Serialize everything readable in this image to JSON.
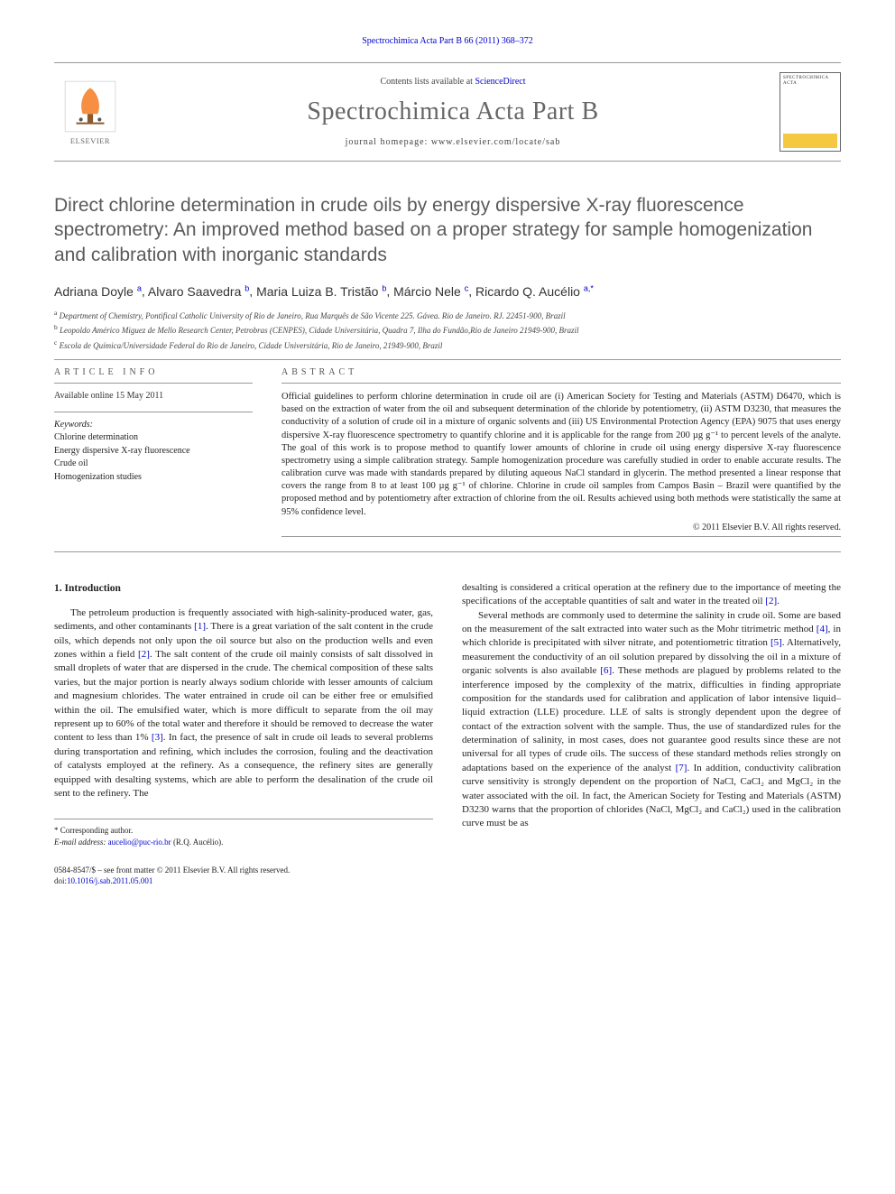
{
  "header": {
    "journal_ref_line": "Spectrochimica Acta Part B 66 (2011) 368–372",
    "contents_prefix": "Contents lists available at ",
    "contents_link": "ScienceDirect",
    "journal_name": "Spectrochimica Acta Part B",
    "homepage_label": "journal homepage: www.elsevier.com/locate/sab",
    "elsevier_brand": "ELSEVIER",
    "cover_title": "SPECTROCHIMICA ACTA",
    "cover_colors": {
      "accent": "#f5c842",
      "border": "#666666"
    }
  },
  "title": "Direct chlorine determination in crude oils by energy dispersive X-ray fluorescence spectrometry: An improved method based on a proper strategy for sample homogenization and calibration with inorganic standards",
  "authors": [
    {
      "name": "Adriana Doyle",
      "aff": "a"
    },
    {
      "name": "Alvaro Saavedra",
      "aff": "b"
    },
    {
      "name": "Maria Luiza B. Tristão",
      "aff": "b"
    },
    {
      "name": "Márcio Nele",
      "aff": "c"
    },
    {
      "name": "Ricardo Q. Aucélio",
      "aff": "a,*"
    }
  ],
  "affiliations": {
    "a": "Department of Chemistry, Pontifical Catholic University of Rio de Janeiro, Rua Marquês de São Vicente 225. Gávea. Rio de Janeiro. RJ. 22451-900, Brazil",
    "b": "Leopoldo Américo Miguez de Mello Research Center, Petrobras (CENPES), Cidade Universitária, Quadra 7, Ilha do Fundão,Rio de Janeiro 21949-900, Brazil",
    "c": "Escola de Química/Universidade Federal do Rio de Janeiro, Cidade Universitária, Rio de Janeiro, 21949-900, Brazil"
  },
  "article_info": {
    "heading": "article info",
    "available_online": "Available online 15 May 2011",
    "keywords_label": "Keywords:",
    "keywords": [
      "Chlorine determination",
      "Energy dispersive X-ray fluorescence",
      "Crude oil",
      "Homogenization studies"
    ]
  },
  "abstract": {
    "heading": "abstract",
    "text": "Official guidelines to perform chlorine determination in crude oil are (i) American Society for Testing and Materials (ASTM) D6470, which is based on the extraction of water from the oil and subsequent determination of the chloride by potentiometry, (ii) ASTM D3230, that measures the conductivity of a solution of crude oil in a mixture of organic solvents and (iii) US Environmental Protection Agency (EPA) 9075 that uses energy dispersive X-ray fluorescence spectrometry to quantify chlorine and it is applicable for the range from 200 µg g⁻¹ to percent levels of the analyte. The goal of this work is to propose method to quantify lower amounts of chlorine in crude oil using energy dispersive X-ray fluorescence spectrometry using a simple calibration strategy. Sample homogenization procedure was carefully studied in order to enable accurate results. The calibration curve was made with standards prepared by diluting aqueous NaCl standard in glycerin. The method presented a linear response that covers the range from 8 to at least 100 µg g⁻¹ of chlorine. Chlorine in crude oil samples from Campos Basin – Brazil were quantified by the proposed method and by potentiometry after extraction of chlorine from the oil. Results achieved using both methods were statistically the same at 95% confidence level.",
    "copyright": "© 2011 Elsevier B.V. All rights reserved."
  },
  "body": {
    "section_number": "1.",
    "section_title": "Introduction",
    "col1_html": "The petroleum production is frequently associated with high-salinity-produced water, gas, sediments, and other contaminants <span class='ref'>[1]</span>. There is a great variation of the salt content in the crude oils, which depends not only upon the oil source but also on the production wells and even zones within a field <span class='ref'>[2]</span>. The salt content of the crude oil mainly consists of salt dissolved in small droplets of water that are dispersed in the crude. The chemical composition of these salts varies, but the major portion is nearly always sodium chloride with lesser amounts of calcium and magnesium chlorides. The water entrained in crude oil can be either free or emulsified within the oil. The emulsified water, which is more difficult to separate from the oil may represent up to 60% of the total water and therefore it should be removed to decrease the water content to less than 1% <span class='ref'>[3]</span>. In fact, the presence of salt in crude oil leads to several problems during transportation and refining, which includes the corrosion, fouling and the deactivation of catalysts employed at the refinery. As a consequence, the refinery sites are generally equipped with desalting systems, which are able to perform the desalination of the crude oil sent to the refinery. The",
    "col2_p1_html": "desalting is considered a critical operation at the refinery due to the importance of meeting the specifications of the acceptable quantities of salt and water in the treated oil <span class='ref'>[2]</span>.",
    "col2_p2_html": "Several methods are commonly used to determine the salinity in crude oil. Some are based on the measurement of the salt extracted into water such as the Mohr titrimetric method <span class='ref'>[4]</span>, in which chloride is precipitated with silver nitrate, and potentiometric titration <span class='ref'>[5]</span>. Alternatively, measurement the conductivity of an oil solution prepared by dissolving the oil in a mixture of organic solvents is also available <span class='ref'>[6]</span>. These methods are plagued by problems related to the interference imposed by the complexity of the matrix, difficulties in finding appropriate composition for the standards used for calibration and application of labor intensive liquid–liquid extraction (LLE) procedure. LLE of salts is strongly dependent upon the degree of contact of the extraction solvent with the sample. Thus, the use of standardized rules for the determination of salinity, in most cases, does not guarantee good results since these are not universal for all types of crude oils. The success of these standard methods relies strongly on adaptations based on the experience of the analyst <span class='ref'>[7]</span>. In addition, conductivity calibration curve sensitivity is strongly dependent on the proportion of NaCl, CaCl₂ and MgCl₂ in the water associated with the oil. In fact, the American Society for Testing and Materials (ASTM) D3230 warns that the proportion of chlorides (NaCl, MgCl₂ and CaCl₂) used in the calibration curve must be as"
  },
  "corresponding": {
    "star": "*",
    "label": "Corresponding author.",
    "email_label": "E-mail address:",
    "email": "aucelio@puc-rio.br",
    "email_name": "(R.Q. Aucélio)."
  },
  "footer": {
    "line1": "0584-8547/$ – see front matter © 2011 Elsevier B.V. All rights reserved.",
    "doi_label": "doi:",
    "doi": "10.1016/j.sab.2011.05.001"
  },
  "colors": {
    "link": "#0000cc",
    "title_gray": "#5a5a5a",
    "rule": "#999999",
    "elsevier_orange": "#f47b20"
  }
}
